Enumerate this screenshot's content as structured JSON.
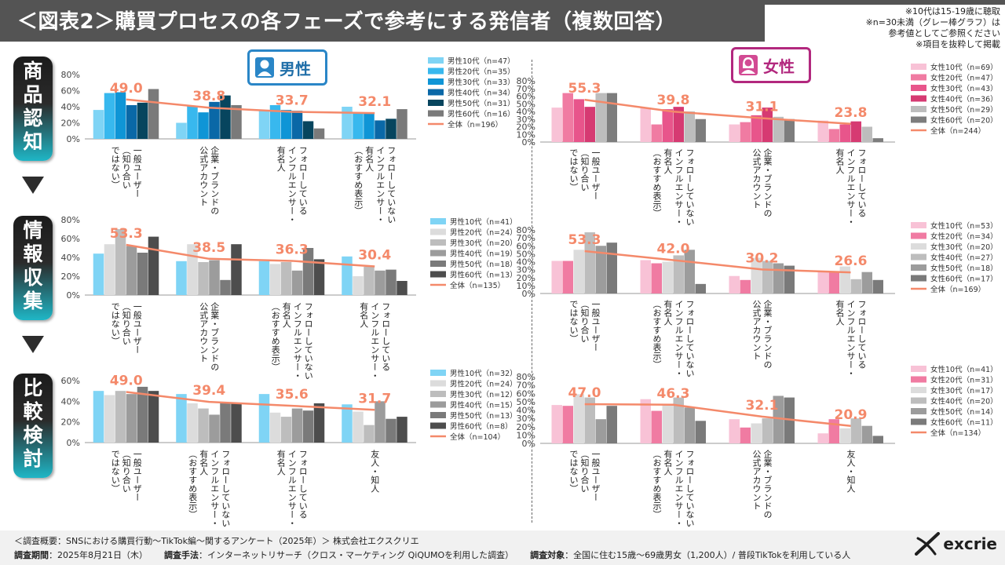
{
  "title": "＜図表2＞購買プロセスの各フェーズで参考にする発信者（複数回答）",
  "notes": [
    "※10代は15-19歳に聴取",
    "※n=30未満（グレー棒グラフ）は",
    "参考値としてご参照ください",
    "※項目を抜粋して掲載"
  ],
  "gender": {
    "male": "男性",
    "female": "女性"
  },
  "stages": [
    {
      "chars": [
        "商",
        "品",
        "認",
        "知"
      ]
    },
    {
      "chars": [
        "情",
        "報",
        "収",
        "集"
      ]
    },
    {
      "chars": [
        "比",
        "較",
        "検",
        "討"
      ]
    }
  ],
  "footer": {
    "overview": "＜調査概要：SNSにおける購買行動～TikTok編～関するアンケート（2025年）＞ 株式会社エクスクリエ",
    "period_label": "調査期間",
    "period": "：2025年8月21日（木）",
    "method_label": "調査手法",
    "method": "：インターネットリサーチ（クロス・マーケティング QiQUMOを利用した調査）",
    "target_label": "調査対象",
    "target": "：全国に住む15歳～69歳男女（1,200人）/ 普段TikTokを利用している人"
  },
  "logo": {
    "text": "excrie"
  },
  "chart_data": [
    {
      "id": "male-awareness",
      "type": "bar",
      "stage": "商品認知",
      "gender": "男性",
      "categories": [
        [
          "一般ユーザー",
          "（知り合い",
          "ではない）"
        ],
        [
          "企業・ブランドの",
          "公式アカウント"
        ],
        [
          "フォローしている",
          "インフルエンサー・",
          "有名人"
        ],
        [
          "フォローしていない",
          "インフルエンサー・",
          "有名人",
          "（おすすめ表示）"
        ]
      ],
      "series": [
        {
          "name": "男性10代（n=47）",
          "color": "#7fd4f5",
          "values": [
            36,
            20,
            36,
            40
          ]
        },
        {
          "name": "男性20代（n=35）",
          "color": "#38b8ee",
          "values": [
            57,
            41,
            42,
            33
          ]
        },
        {
          "name": "男性30代（n=33）",
          "color": "#0f95d6",
          "values": [
            58,
            33,
            36,
            32
          ]
        },
        {
          "name": "男性40代（n=34）",
          "color": "#0a68a7",
          "values": [
            42,
            46,
            35,
            23
          ]
        },
        {
          "name": "男性50代（n=31）",
          "color": "#07455e",
          "values": [
            45,
            54,
            22,
            25
          ]
        },
        {
          "name": "男性60代（n=16）",
          "color": "#7a7a7a",
          "values": [
            62,
            42,
            13,
            37
          ]
        }
      ],
      "total": {
        "name": "全体（n=196）",
        "values": [
          49.0,
          38.8,
          33.7,
          32.1
        ]
      },
      "ylim": [
        0,
        80
      ],
      "yticks": [
        "0%",
        "20%",
        "40%",
        "60%",
        "80%"
      ]
    },
    {
      "id": "female-awareness",
      "type": "bar",
      "stage": "商品認知",
      "gender": "女性",
      "categories": [
        [
          "一般ユーザー",
          "（知り合い",
          "ではない）"
        ],
        [
          "フォローしていない",
          "インフルエンサー・",
          "有名人",
          "（おすすめ表示）"
        ],
        [
          "企業・ブランドの",
          "公式アカウント"
        ],
        [
          "フォローしている",
          "インフルエンサー・",
          "有名人"
        ]
      ],
      "series": [
        {
          "name": "女性10代（n=69）",
          "color": "#f8c2d6",
          "values": [
            45,
            45,
            23,
            28
          ]
        },
        {
          "name": "女性20代（n=47）",
          "color": "#f07ba2",
          "values": [
            64,
            23,
            26,
            17
          ]
        },
        {
          "name": "女性30代（n=43）",
          "color": "#e8558b",
          "values": [
            56,
            43,
            35,
            23
          ]
        },
        {
          "name": "女性40代（n=36）",
          "color": "#d63a72",
          "values": [
            46,
            46,
            45,
            27
          ]
        },
        {
          "name": "女性50代（n=29）",
          "color": "#bdbdbd",
          "values": [
            64,
            40,
            33,
            20
          ]
        },
        {
          "name": "女性60代（n=20）",
          "color": "#7d7d7d",
          "values": [
            64,
            30,
            30,
            5
          ]
        }
      ],
      "total": {
        "name": "全体（n=244）",
        "values": [
          55.3,
          39.8,
          31.1,
          23.8
        ]
      },
      "ylim": [
        0,
        80
      ],
      "yticks": [
        "0%",
        "10%",
        "20%",
        "30%",
        "40%",
        "50%",
        "60%",
        "70%",
        "80%"
      ]
    },
    {
      "id": "male-research",
      "type": "bar",
      "stage": "情報収集",
      "gender": "男性",
      "categories": [
        [
          "一般ユーザー",
          "（知り合い",
          "ではない）"
        ],
        [
          "企業・ブランドの",
          "公式アカウント"
        ],
        [
          "フォローしていない",
          "インフルエンサー・",
          "有名人",
          "（おすすめ表示）"
        ],
        [
          "フォローしている",
          "インフルエンサー・",
          "有名人"
        ]
      ],
      "series": [
        {
          "name": "男性10代（n=41）",
          "color": "#7fd4f5",
          "values": [
            44,
            36,
            36,
            41
          ]
        },
        {
          "name": "男性20代（n=24）",
          "color": "#dcdcdc",
          "values": [
            54,
            54,
            33,
            20
          ]
        },
        {
          "name": "男性30代（n=20）",
          "color": "#bdbdbd",
          "values": [
            70,
            35,
            35,
            30
          ]
        },
        {
          "name": "男性40代（n=19）",
          "color": "#9c9c9c",
          "values": [
            52,
            37,
            26,
            26
          ]
        },
        {
          "name": "男性50代（n=18）",
          "color": "#7a7a7a",
          "values": [
            45,
            16,
            50,
            27
          ]
        },
        {
          "name": "男性60代（n=13）",
          "color": "#4d4d4d",
          "values": [
            62,
            54,
            38,
            15
          ]
        }
      ],
      "total": {
        "name": "全体（n=135）",
        "values": [
          53.3,
          38.5,
          36.3,
          30.4
        ]
      },
      "ylim": [
        0,
        80
      ],
      "yticks": [
        "0%",
        "20%",
        "40%",
        "60%",
        "80%"
      ]
    },
    {
      "id": "female-research",
      "type": "bar",
      "stage": "情報収集",
      "gender": "女性",
      "categories": [
        [
          "一般ユーザー",
          "（知り合い",
          "ではない）"
        ],
        [
          "フォローしていない",
          "インフルエンサー・",
          "有名人",
          "（おすすめ表示）"
        ],
        [
          "企業・ブランドの",
          "公式アカウント"
        ],
        [
          "フォローしている",
          "インフルエンサー・",
          "有名人"
        ]
      ],
      "series": [
        {
          "name": "女性10代（n=53）",
          "color": "#f8c2d6",
          "values": [
            41,
            42,
            22,
            28
          ]
        },
        {
          "name": "女性20代（n=34）",
          "color": "#f07ba2",
          "values": [
            41,
            38,
            17,
            27
          ]
        },
        {
          "name": "女性30代（n=20）",
          "color": "#dcdcdc",
          "values": [
            55,
            40,
            45,
            34
          ]
        },
        {
          "name": "女性40代（n=27）",
          "color": "#bdbdbd",
          "values": [
            77,
            48,
            41,
            18
          ]
        },
        {
          "name": "女性50代（n=18）",
          "color": "#9c9c9c",
          "values": [
            60,
            55,
            38,
            27
          ]
        },
        {
          "name": "女性60代（n=17）",
          "color": "#7a7a7a",
          "values": [
            64,
            12,
            35,
            17
          ]
        }
      ],
      "total": {
        "name": "全体（n=169）",
        "values": [
          53.3,
          42.0,
          30.2,
          26.6
        ]
      },
      "ylim": [
        0,
        80
      ],
      "yticks": [
        "0%",
        "10%",
        "20%",
        "30%",
        "40%",
        "50%",
        "60%",
        "70%",
        "80%"
      ]
    },
    {
      "id": "male-comparison",
      "type": "bar",
      "stage": "比較検討",
      "gender": "男性",
      "categories": [
        [
          "一般ユーザー",
          "（知り合い",
          "ではない）"
        ],
        [
          "フォローしていない",
          "インフルエンサー・",
          "有名人",
          "（おすすめ表示）"
        ],
        [
          "フォローしている",
          "インフルエンサー・",
          "有名人"
        ],
        [
          "友人・知人"
        ]
      ],
      "series": [
        {
          "name": "男性10代（n=32）",
          "color": "#7fd4f5",
          "values": [
            50,
            47,
            47,
            37
          ]
        },
        {
          "name": "男性20代（n=24）",
          "color": "#dcdcdc",
          "values": [
            46,
            38,
            29,
            30
          ]
        },
        {
          "name": "男性30代（n=12）",
          "color": "#bdbdbd",
          "values": [
            50,
            33,
            25,
            17
          ]
        },
        {
          "name": "男性40代（n=15）",
          "color": "#9c9c9c",
          "values": [
            47,
            27,
            33,
            40
          ]
        },
        {
          "name": "男性50代（n=13）",
          "color": "#7a7a7a",
          "values": [
            54,
            38,
            31,
            23
          ]
        },
        {
          "name": "男性60代（n=8）",
          "color": "#4d4d4d",
          "values": [
            50,
            38,
            38,
            25
          ]
        }
      ],
      "total": {
        "name": "全体（n=104）",
        "values": [
          49.0,
          39.4,
          35.6,
          31.7
        ]
      },
      "ylim": [
        0,
        60
      ],
      "yticks": [
        "0%",
        "20%",
        "40%",
        "60%"
      ]
    },
    {
      "id": "female-comparison",
      "type": "bar",
      "stage": "比較検討",
      "gender": "女性",
      "categories": [
        [
          "一般ユーザー",
          "（知り合い",
          "ではない）"
        ],
        [
          "フォローしていない",
          "インフルエンサー・",
          "有名人",
          "（おすすめ表示）"
        ],
        [
          "企業・ブランドの",
          "公式アカウント"
        ],
        [
          "友人・知人"
        ]
      ],
      "series": [
        {
          "name": "女性10代（n=41）",
          "color": "#f8c2d6",
          "values": [
            46,
            53,
            29,
            12
          ]
        },
        {
          "name": "女性20代（n=31）",
          "color": "#f07ba2",
          "values": [
            45,
            39,
            19,
            29
          ]
        },
        {
          "name": "女性30代（n=17）",
          "color": "#dcdcdc",
          "values": [
            59,
            47,
            24,
            18
          ]
        },
        {
          "name": "女性40代（n=20）",
          "color": "#bdbdbd",
          "values": [
            55,
            55,
            30,
            30
          ]
        },
        {
          "name": "女性50代（n=14）",
          "color": "#9c9c9c",
          "values": [
            29,
            43,
            57,
            21
          ]
        },
        {
          "name": "女性60代（n=11）",
          "color": "#7a7a7a",
          "values": [
            45,
            27,
            55,
            9
          ]
        }
      ],
      "total": {
        "name": "全体（n=134）",
        "values": [
          47.0,
          46.3,
          32.1,
          20.9
        ]
      },
      "ylim": [
        0,
        80
      ],
      "yticks": [
        "0%",
        "10%",
        "20%",
        "30%",
        "40%",
        "50%",
        "60%",
        "70%",
        "80%"
      ]
    }
  ]
}
